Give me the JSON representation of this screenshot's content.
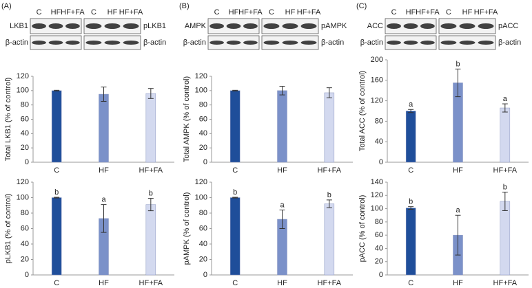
{
  "blots": [
    {
      "panel": "(A)",
      "lanes": [
        "C",
        "HF",
        "HF+FA"
      ],
      "left_labels": [
        "LKB1",
        "β-actin"
      ],
      "right_labels": [
        "pLKB1",
        "β-actin"
      ]
    },
    {
      "panel": "(B)",
      "lanes": [
        "C",
        "HF",
        "HF+FA"
      ],
      "left_labels": [
        "AMPK",
        "β-actin"
      ],
      "right_labels": [
        "pAMPK",
        "β-actin"
      ]
    },
    {
      "panel": "(C)",
      "lanes": [
        "C",
        "HF",
        "HF+FA"
      ],
      "left_labels": [
        "ACC",
        "β-actin"
      ],
      "right_labels": [
        "pACC",
        "β-actin"
      ]
    }
  ],
  "chart_data": [
    {
      "type": "bar",
      "ylabel": "Total LKB1 (% of control)",
      "categories": [
        "C",
        "HF",
        "HF+FA"
      ],
      "values": [
        100,
        95,
        96
      ],
      "errors": [
        0.5,
        10,
        7
      ],
      "colors": [
        "#1f4e9a",
        "#7b91c9",
        "#d3d9ef"
      ],
      "ylim": [
        0,
        120
      ],
      "yticks": [
        0,
        20,
        40,
        60,
        80,
        100,
        120
      ]
    },
    {
      "type": "bar",
      "ylabel": "pLKB1 (% of control)",
      "categories": [
        "C",
        "HF",
        "HF+FA"
      ],
      "values": [
        100,
        73,
        91
      ],
      "errors": [
        0.5,
        18,
        8
      ],
      "annotations": [
        "b",
        "a",
        "b"
      ],
      "colors": [
        "#1f4e9a",
        "#7b91c9",
        "#d3d9ef"
      ],
      "ylim": [
        0,
        120
      ],
      "yticks": [
        0,
        20,
        40,
        60,
        80,
        100,
        120
      ]
    },
    {
      "type": "bar",
      "ylabel": "Total AMPK (% of control)",
      "categories": [
        "C",
        "HF",
        "HF+FA"
      ],
      "values": [
        100,
        100,
        97
      ],
      "errors": [
        0.5,
        6,
        7
      ],
      "colors": [
        "#1f4e9a",
        "#7b91c9",
        "#d3d9ef"
      ],
      "ylim": [
        0,
        120
      ],
      "yticks": [
        0,
        20,
        40,
        60,
        80,
        100,
        120
      ]
    },
    {
      "type": "bar",
      "ylabel": "pAMPK (% of control)",
      "categories": [
        "C",
        "HF",
        "HF+FA"
      ],
      "values": [
        100,
        72,
        92
      ],
      "errors": [
        0.5,
        12,
        5
      ],
      "annotations": [
        "b",
        "a",
        "b"
      ],
      "colors": [
        "#1f4e9a",
        "#7b91c9",
        "#d3d9ef"
      ],
      "ylim": [
        0,
        120
      ],
      "yticks": [
        0,
        20,
        40,
        60,
        80,
        100,
        120
      ]
    },
    {
      "type": "bar",
      "ylabel": "Total ACC (% of control)",
      "categories": [
        "C",
        "HF",
        "HF+FA"
      ],
      "values": [
        100,
        155,
        106
      ],
      "errors": [
        3,
        27,
        8
      ],
      "annotations": [
        "a",
        "b",
        "a"
      ],
      "colors": [
        "#1f4e9a",
        "#7b91c9",
        "#d3d9ef"
      ],
      "ylim": [
        0,
        200
      ],
      "yticks": [
        0,
        40,
        80,
        120,
        160,
        200
      ]
    },
    {
      "type": "bar",
      "ylabel": "pACC (% of control)",
      "categories": [
        "C",
        "HF",
        "HF+FA"
      ],
      "values": [
        101,
        60,
        111
      ],
      "errors": [
        2,
        30,
        14
      ],
      "annotations": [
        "b",
        "a",
        "b"
      ],
      "colors": [
        "#1f4e9a",
        "#7b91c9",
        "#d3d9ef"
      ],
      "ylim": [
        0,
        140
      ],
      "yticks": [
        0,
        20,
        40,
        60,
        80,
        100,
        120,
        140
      ]
    }
  ]
}
